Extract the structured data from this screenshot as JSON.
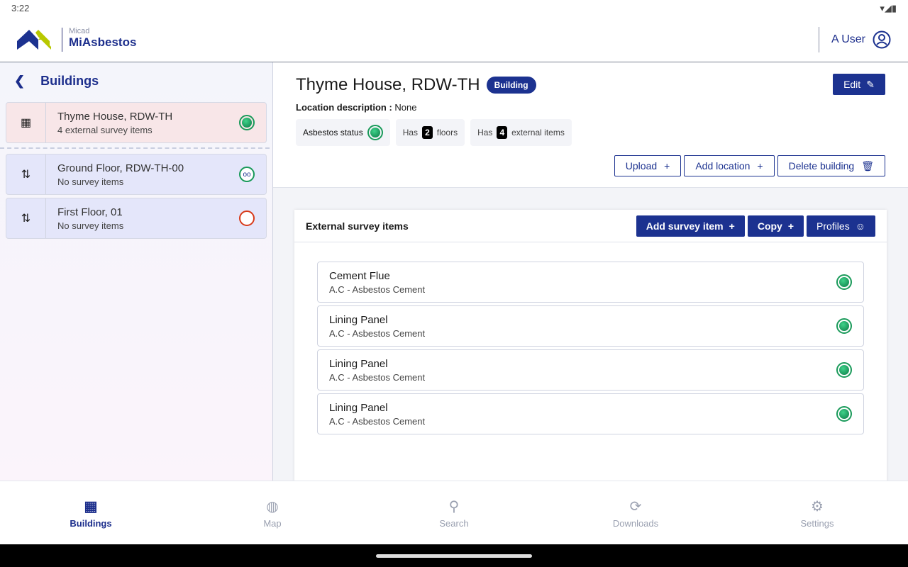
{
  "status": {
    "time": "3:22"
  },
  "app": {
    "company": "Micad",
    "name": "MiAsbestos",
    "user": "A User"
  },
  "sidebar": {
    "title": "Buildings",
    "items": [
      {
        "title": "Thyme House, RDW-TH",
        "subtitle": "4 external survey items",
        "icon": "building-icon",
        "status": "green"
      },
      {
        "title": "Ground Floor, RDW-TH-00",
        "subtitle": "No survey items",
        "icon": "elevator-icon",
        "status": "goggles"
      },
      {
        "title": "First Floor, 01",
        "subtitle": "No survey items",
        "icon": "elevator-icon",
        "status": "red"
      }
    ]
  },
  "building": {
    "title": "Thyme House, RDW-TH",
    "badge": "Building",
    "loc_label": "Location description :",
    "loc_value": "None",
    "asbestos_label": "Asbestos status",
    "has": "Has",
    "floors": "2",
    "floors_label": "floors",
    "external": "4",
    "external_label": "external items",
    "edit": "Edit",
    "upload": "Upload",
    "add_location": "Add location",
    "delete": "Delete building"
  },
  "panel": {
    "title": "External survey items",
    "add": "Add survey item",
    "copy": "Copy",
    "profiles": "Profiles",
    "items": [
      {
        "name": "Cement Flue",
        "type": "A.C - Asbestos Cement"
      },
      {
        "name": "Lining Panel",
        "type": "A.C - Asbestos Cement"
      },
      {
        "name": "Lining Panel",
        "type": "A.C - Asbestos Cement"
      },
      {
        "name": "Lining Panel",
        "type": "A.C - Asbestos Cement"
      }
    ]
  },
  "nav": [
    {
      "label": "Buildings",
      "active": true
    },
    {
      "label": "Map"
    },
    {
      "label": "Search"
    },
    {
      "label": "Downloads"
    },
    {
      "label": "Settings"
    }
  ],
  "colors": {
    "primary": "#1c3290",
    "status_green": "#1a9a5a",
    "status_red": "#d83a1a"
  }
}
